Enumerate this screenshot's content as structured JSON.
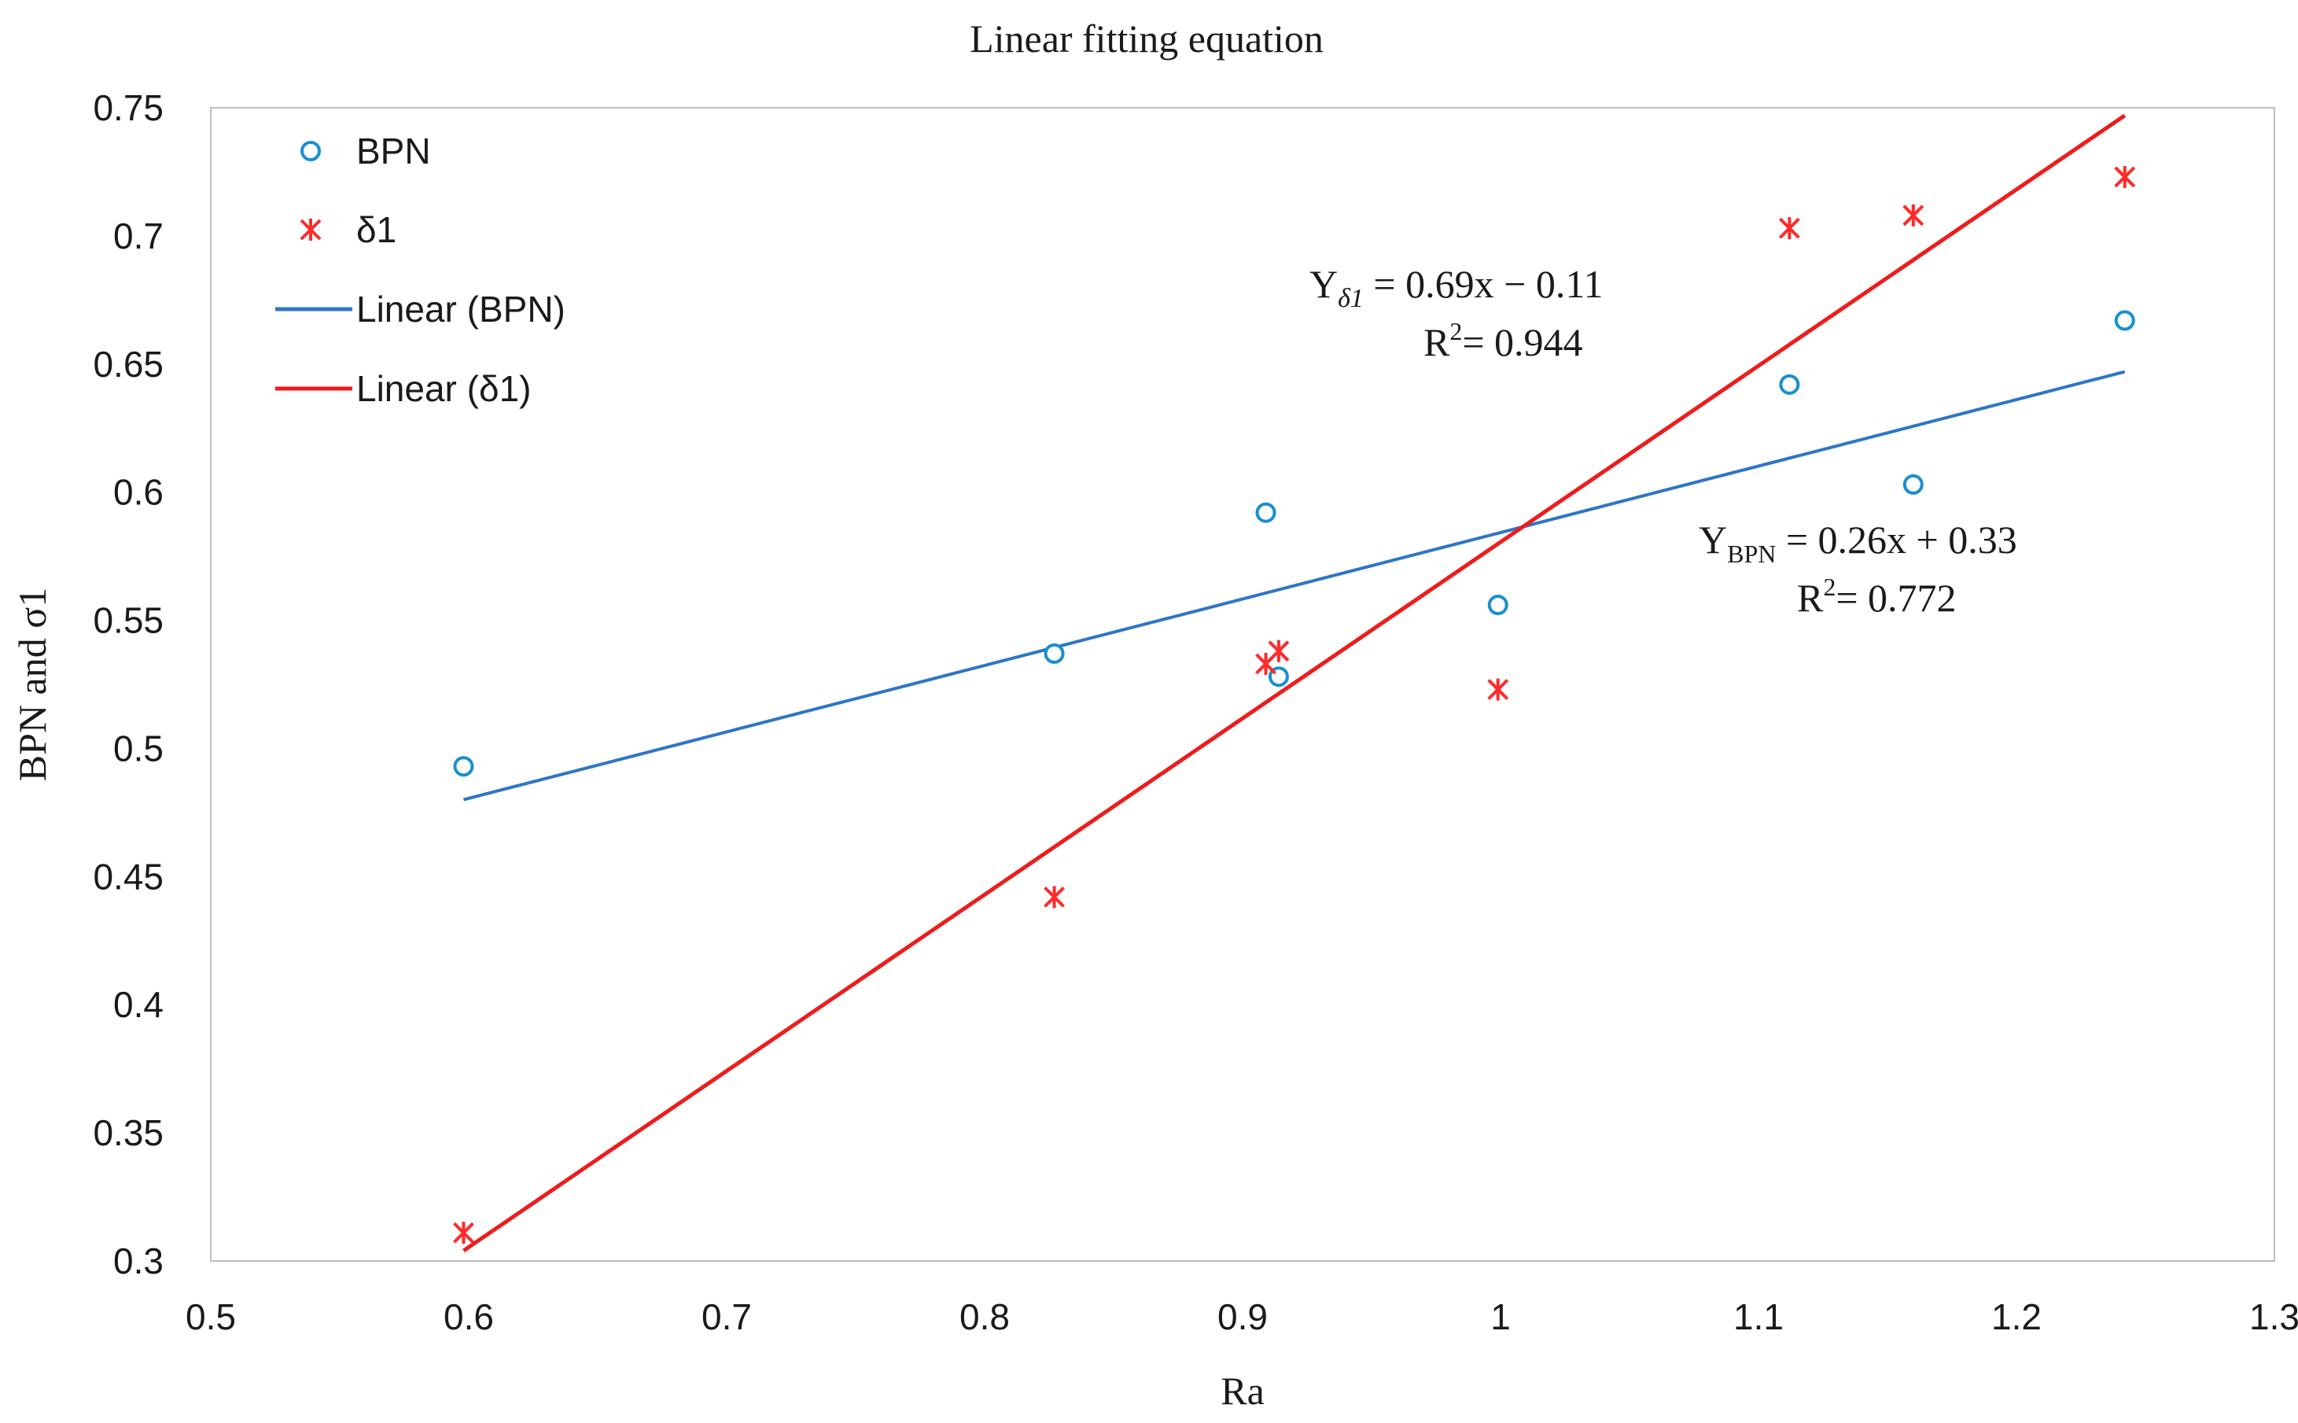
{
  "chart_data": {
    "type": "scatter",
    "title": "Linear fitting equation",
    "xlabel": "Ra",
    "ylabel": "BPN and σ1",
    "xlim": [
      0.5,
      1.3
    ],
    "ylim": [
      0.3,
      0.75
    ],
    "x_ticks": [
      0.5,
      0.6,
      0.7,
      0.8,
      0.9,
      1.0,
      1.1,
      1.2,
      1.3
    ],
    "x_tick_labels": [
      "0.5",
      "0.6",
      "0.7",
      "0.8",
      "0.9",
      "1",
      "1.1",
      "1.2",
      "1.3"
    ],
    "y_ticks": [
      0.3,
      0.35,
      0.4,
      0.45,
      0.5,
      0.55,
      0.6,
      0.65,
      0.7,
      0.75
    ],
    "y_tick_labels": [
      "0.3",
      "0.35",
      "0.4",
      "0.45",
      "0.5",
      "0.55",
      "0.6",
      "0.65",
      "0.7",
      "0.75"
    ],
    "grid": false,
    "legend_position": "top-left",
    "series": [
      {
        "name": "BPN",
        "marker": "circle",
        "color": "#1a8fd0",
        "x": [
          0.598,
          0.827,
          0.909,
          0.914,
          0.999,
          1.112,
          1.16,
          1.242
        ],
        "y": [
          0.493,
          0.537,
          0.592,
          0.528,
          0.556,
          0.642,
          0.603,
          0.667
        ]
      },
      {
        "name": "δ1",
        "marker": "asterisk",
        "color": "#ff2a2a",
        "x": [
          0.598,
          0.827,
          0.909,
          0.914,
          0.999,
          1.112,
          1.16,
          1.242
        ],
        "y": [
          0.311,
          0.442,
          0.533,
          0.538,
          0.523,
          0.703,
          0.708,
          0.723
        ]
      }
    ],
    "trendlines": [
      {
        "name": "Linear (BPN)",
        "color": "#2e75c6",
        "x": [
          0.598,
          1.242
        ],
        "y": [
          0.48,
          0.647
        ]
      },
      {
        "name": "Linear (δ1)",
        "color": "#ee1c1c",
        "x": [
          0.598,
          1.242
        ],
        "y": [
          0.304,
          0.747
        ]
      }
    ],
    "annotations": [
      {
        "id": "delta",
        "main": "Y",
        "sub": "δ1",
        "rest": " = 0.69x − 0.11",
        "r2": "R",
        "r2_sup": "2",
        "r2_rest": "= 0.944"
      },
      {
        "id": "bpn",
        "main": "Y",
        "sub": "BPN",
        "rest": " = 0.26x + 0.33",
        "r2": "R",
        "r2_sup": "2",
        "r2_rest": "= 0.772"
      }
    ]
  }
}
